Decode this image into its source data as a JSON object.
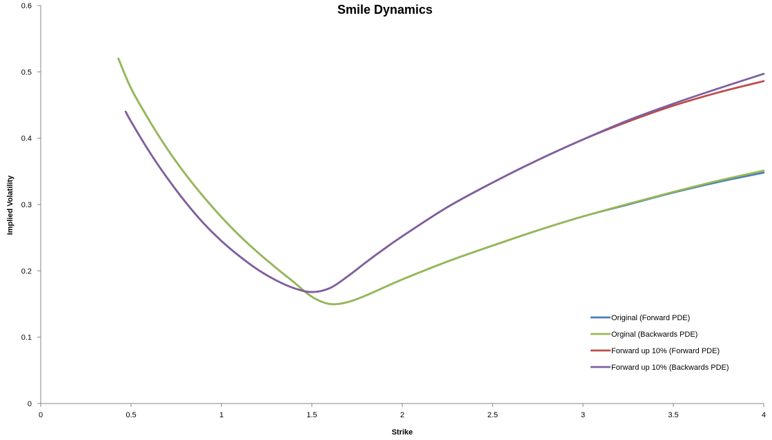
{
  "chart_data": {
    "type": "line",
    "title": "Smile Dynamics",
    "xlabel": "Strike",
    "ylabel": "Implied Volatility",
    "xlim": [
      0,
      4
    ],
    "ylim": [
      0,
      0.6
    ],
    "x_ticks": [
      "0",
      "0.5",
      "1",
      "1.5",
      "2",
      "2.5",
      "3",
      "3.5",
      "4"
    ],
    "y_ticks": [
      "0",
      "0.1",
      "0.2",
      "0.3",
      "0.4",
      "0.5",
      "0.6"
    ],
    "grid": false,
    "legend_position": "bottom-right",
    "series": [
      {
        "name": "Original (Forward PDE)",
        "color": "#4a7ebb",
        "points": [
          [
            0.43,
            0.52
          ],
          [
            0.5,
            0.475
          ],
          [
            0.6,
            0.427
          ],
          [
            0.7,
            0.384
          ],
          [
            0.8,
            0.346
          ],
          [
            0.9,
            0.312
          ],
          [
            1.0,
            0.281
          ],
          [
            1.1,
            0.253
          ],
          [
            1.2,
            0.228
          ],
          [
            1.3,
            0.205
          ],
          [
            1.4,
            0.183
          ],
          [
            1.5,
            0.161
          ],
          [
            1.6,
            0.15
          ],
          [
            1.7,
            0.153
          ],
          [
            1.8,
            0.163
          ],
          [
            1.9,
            0.175
          ],
          [
            2.0,
            0.187
          ],
          [
            2.25,
            0.214
          ],
          [
            2.5,
            0.238
          ],
          [
            2.75,
            0.261
          ],
          [
            3.0,
            0.282
          ],
          [
            3.25,
            0.3
          ],
          [
            3.5,
            0.318
          ],
          [
            3.75,
            0.334
          ],
          [
            4.0,
            0.348
          ]
        ]
      },
      {
        "name": "Orginal (Backwards PDE)",
        "color": "#98b954",
        "points": [
          [
            0.43,
            0.52
          ],
          [
            0.5,
            0.475
          ],
          [
            0.6,
            0.427
          ],
          [
            0.7,
            0.384
          ],
          [
            0.8,
            0.346
          ],
          [
            0.9,
            0.312
          ],
          [
            1.0,
            0.281
          ],
          [
            1.1,
            0.253
          ],
          [
            1.2,
            0.228
          ],
          [
            1.3,
            0.205
          ],
          [
            1.4,
            0.183
          ],
          [
            1.5,
            0.161
          ],
          [
            1.6,
            0.15
          ],
          [
            1.7,
            0.153
          ],
          [
            1.8,
            0.163
          ],
          [
            1.9,
            0.175
          ],
          [
            2.0,
            0.187
          ],
          [
            2.25,
            0.214
          ],
          [
            2.5,
            0.238
          ],
          [
            2.75,
            0.261
          ],
          [
            3.0,
            0.282
          ],
          [
            3.25,
            0.301
          ],
          [
            3.5,
            0.319
          ],
          [
            3.75,
            0.336
          ],
          [
            4.0,
            0.351
          ]
        ]
      },
      {
        "name": "Forward up 10% (Forward PDE)",
        "color": "#be4b48",
        "points": [
          [
            0.47,
            0.44
          ],
          [
            0.5,
            0.425
          ],
          [
            0.6,
            0.38
          ],
          [
            0.7,
            0.34
          ],
          [
            0.8,
            0.304
          ],
          [
            0.9,
            0.272
          ],
          [
            1.0,
            0.245
          ],
          [
            1.1,
            0.222
          ],
          [
            1.2,
            0.202
          ],
          [
            1.3,
            0.186
          ],
          [
            1.4,
            0.174
          ],
          [
            1.5,
            0.168
          ],
          [
            1.6,
            0.174
          ],
          [
            1.7,
            0.192
          ],
          [
            1.8,
            0.213
          ],
          [
            1.9,
            0.233
          ],
          [
            2.0,
            0.252
          ],
          [
            2.25,
            0.296
          ],
          [
            2.5,
            0.333
          ],
          [
            2.75,
            0.367
          ],
          [
            3.0,
            0.398
          ],
          [
            3.25,
            0.425
          ],
          [
            3.5,
            0.449
          ],
          [
            3.75,
            0.469
          ],
          [
            4.0,
            0.486
          ]
        ]
      },
      {
        "name": "Forward up 10% (Backwards PDE)",
        "color": "#7d60a0",
        "points": [
          [
            0.47,
            0.44
          ],
          [
            0.5,
            0.425
          ],
          [
            0.6,
            0.38
          ],
          [
            0.7,
            0.34
          ],
          [
            0.8,
            0.304
          ],
          [
            0.9,
            0.272
          ],
          [
            1.0,
            0.245
          ],
          [
            1.1,
            0.222
          ],
          [
            1.2,
            0.202
          ],
          [
            1.3,
            0.186
          ],
          [
            1.4,
            0.174
          ],
          [
            1.5,
            0.168
          ],
          [
            1.6,
            0.174
          ],
          [
            1.7,
            0.192
          ],
          [
            1.8,
            0.213
          ],
          [
            1.9,
            0.233
          ],
          [
            2.0,
            0.252
          ],
          [
            2.25,
            0.296
          ],
          [
            2.5,
            0.333
          ],
          [
            2.75,
            0.367
          ],
          [
            3.0,
            0.398
          ],
          [
            3.25,
            0.427
          ],
          [
            3.5,
            0.452
          ],
          [
            3.75,
            0.475
          ],
          [
            4.0,
            0.497
          ]
        ]
      }
    ]
  }
}
